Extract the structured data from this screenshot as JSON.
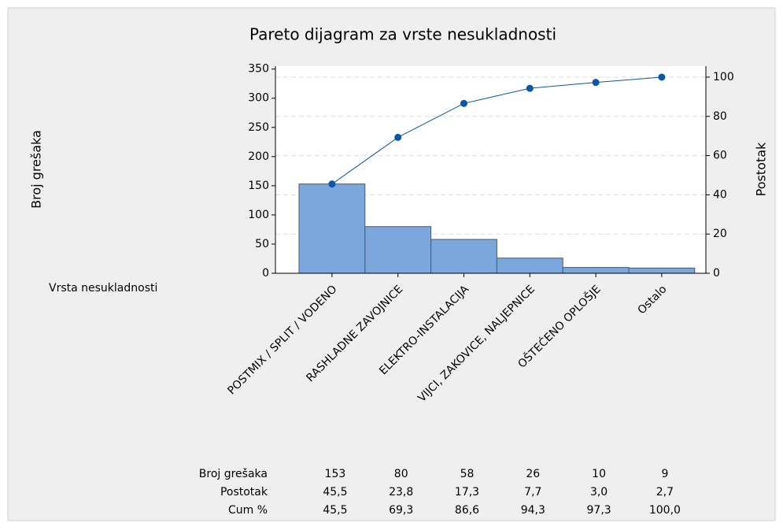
{
  "chart_data": {
    "type": "pareto",
    "title": "Pareto dijagram za vrste nesukladnosti",
    "y_label": "Broj grešaka",
    "y2_label": "Postotak",
    "x_label": "Vrsta nesukladnosti",
    "categories": [
      "POSTMIX / SPLIT / VODENO",
      "RASHLADNE ZAVOJNICE",
      "ELEKTRO-INSTALACIJA",
      "VIJCI, ZAKOVICE, NALJEPNICE",
      "OŠTEĆENO OPLOŠJE",
      "Ostalo"
    ],
    "series": [
      {
        "name": "Broj grešaka",
        "color": "#7ba7dc",
        "values": [
          153,
          80,
          58,
          26,
          10,
          9
        ]
      },
      {
        "name": "Cum %",
        "axis": "y2",
        "color": "#0a56a8",
        "values": [
          45.5,
          69.3,
          86.6,
          94.3,
          97.3,
          100.0
        ],
        "value_labels": [
          "45,5",
          "69,3",
          "86,6",
          "94,3",
          "97,3",
          "100,0"
        ]
      }
    ],
    "percent": {
      "name": "Postotak",
      "values": [
        45.5,
        23.8,
        17.3,
        7.7,
        3.0,
        2.7
      ],
      "value_labels": [
        "45,5",
        "23,8",
        "17,3",
        "7,7",
        "3,0",
        "2,7"
      ]
    },
    "ylim": [
      0,
      355
    ],
    "yticks": [
      0,
      50,
      100,
      150,
      200,
      250,
      300,
      350
    ],
    "y2lim": [
      0,
      105.6
    ],
    "y2ticks": [
      0,
      20,
      40,
      60,
      80,
      100
    ],
    "grid": true
  }
}
